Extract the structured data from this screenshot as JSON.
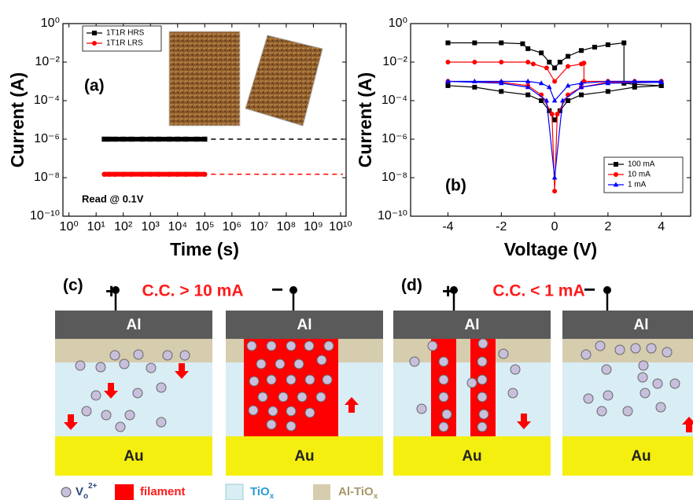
{
  "chart_data": [
    {
      "type": "scatter",
      "xlabel": "Time (s)",
      "ylabel": "Current (A)",
      "annotations": [
        "(a)",
        "Read @ 0.1V"
      ],
      "xlog": true,
      "ylog": true,
      "legend": "upper left",
      "xlim": [
        0.6,
        16000000000
      ],
      "ylim": [
        1e-10,
        1
      ],
      "xticks": [
        {
          "value": 1,
          "label": "10⁰"
        },
        {
          "value": 10,
          "label": "10¹"
        },
        {
          "value": 100,
          "label": "10²"
        },
        {
          "value": 1000,
          "label": "10³"
        },
        {
          "value": 10000,
          "label": "10⁴"
        },
        {
          "value": 100000,
          "label": "10⁵"
        },
        {
          "value": 1000000,
          "label": "10⁶"
        },
        {
          "value": 10000000,
          "label": "10⁷"
        },
        {
          "value": 100000000,
          "label": "10⁸"
        },
        {
          "value": 1000000000,
          "label": "10⁹"
        },
        {
          "value": 10000000000,
          "label": "10¹⁰"
        }
      ],
      "yticks": [
        {
          "value": 1e-10,
          "label": "10⁻¹⁰"
        },
        {
          "value": 1e-08,
          "label": "10⁻⁸"
        },
        {
          "value": 1e-06,
          "label": "10⁻⁶"
        },
        {
          "value": 0.0001,
          "label": "10⁻⁴"
        },
        {
          "value": 0.01,
          "label": "10⁻²"
        },
        {
          "value": 1,
          "label": "10⁰"
        }
      ],
      "x": [
        20,
        30,
        50,
        100,
        200,
        500,
        1000,
        2000,
        5000,
        10000,
        20000,
        50000,
        100000
      ],
      "series": [
        {
          "name": "1T1R HRS",
          "color": "#000000",
          "marker": "square",
          "values": [
            1e-06,
            1e-06,
            1e-06,
            1e-06,
            1e-06,
            1e-06,
            1e-06,
            1e-06,
            1e-06,
            1e-06,
            1e-06,
            1e-06,
            1e-06
          ]
        },
        {
          "name": "1T1R LRS",
          "color": "#ff0000",
          "marker": "circle",
          "values": [
            1.5e-08,
            1.5e-08,
            1.5e-08,
            1.5e-08,
            1.5e-08,
            1.5e-08,
            1.5e-08,
            1.5e-08,
            1.5e-08,
            1.5e-08,
            1.5e-08,
            1.5e-08,
            1.5e-08
          ]
        }
      ]
    },
    {
      "type": "line",
      "xlabel": "Voltage (V)",
      "ylabel": "Current (A)",
      "annotations": [
        "(b)"
      ],
      "xlog": false,
      "ylog": true,
      "legend": "lower right",
      "xlim": [
        -5.4,
        5.1
      ],
      "ylim": [
        1e-10,
        1
      ],
      "xticks": [
        -4,
        -2,
        0,
        2,
        4
      ],
      "yticks": [
        {
          "value": 1e-10,
          "label": "10⁻¹⁰"
        },
        {
          "value": 1e-08,
          "label": "10⁻⁸"
        },
        {
          "value": 1e-06,
          "label": "10⁻⁶"
        },
        {
          "value": 0.0001,
          "label": "10⁻⁴"
        },
        {
          "value": 0.01,
          "label": "10⁻²"
        },
        {
          "value": 1,
          "label": "10⁰"
        }
      ],
      "series": [
        {
          "name": "100 mA",
          "color": "#000000",
          "marker": "square",
          "x": [
            -4,
            -3,
            -2,
            -1.2,
            -1,
            -0.5,
            -0.2,
            0,
            0.2,
            0.5,
            1,
            1.5,
            2,
            2.6,
            2.6,
            3,
            4,
            4,
            3,
            2,
            1,
            0.5,
            0.2,
            0,
            -0.2,
            -0.5,
            -1,
            -2,
            -3,
            -4
          ],
          "values": [
            0.1,
            0.1,
            0.1,
            0.09,
            0.05,
            0.03,
            0.01,
            0.005,
            0.01,
            0.02,
            0.04,
            0.06,
            0.08,
            0.1,
            0.0008,
            0.0007,
            0.0006,
            0.0006,
            0.0005,
            0.0003,
            0.0002,
            0.0001,
            3e-05,
            1e-05,
            3e-05,
            0.0001,
            0.0002,
            0.0003,
            0.0005,
            0.0006
          ]
        },
        {
          "name": "10 mA",
          "color": "#ff0000",
          "marker": "circle",
          "x": [
            -4,
            -3,
            -2,
            -1,
            -0.8,
            -0.3,
            0,
            0.5,
            1,
            1.1,
            1.1,
            2,
            3,
            4,
            4,
            2,
            1,
            0.5,
            0.1,
            0,
            -0.1,
            -0.5,
            -1,
            -2,
            -4
          ],
          "values": [
            0.01,
            0.01,
            0.01,
            0.01,
            0.008,
            0.005,
            0.001,
            0.006,
            0.008,
            0.009,
            0.001,
            0.001,
            0.001,
            0.001,
            0.001,
            0.0009,
            0.0005,
            0.0002,
            2e-05,
            2e-09,
            2e-05,
            0.0002,
            0.0006,
            0.0009,
            0.001
          ]
        },
        {
          "name": "1 mA",
          "color": "#0000ff",
          "marker": "triangle",
          "x": [
            -4,
            -3,
            -2,
            -1,
            -0.5,
            -0.2,
            0,
            0.5,
            1,
            2,
            3,
            4,
            4,
            2,
            1,
            0.3,
            0,
            -0.3,
            -1,
            -2,
            -4
          ],
          "values": [
            0.001,
            0.001,
            0.001,
            0.001,
            0.0008,
            0.0005,
            0.0001,
            0.0006,
            0.0008,
            0.001,
            0.001,
            0.001,
            0.0009,
            0.0008,
            0.0005,
            0.0001,
            1e-08,
            0.0001,
            0.0005,
            0.0008,
            0.001
          ]
        }
      ]
    }
  ],
  "panels": [
    {
      "label": "(c)",
      "plus": "+",
      "condition": "C.C. > 10 mA",
      "minus": "−",
      "cells": [
        {
          "top": "Al",
          "bottom": "Au"
        },
        {
          "top": "Al",
          "bottom": "Au"
        }
      ]
    },
    {
      "label": "(d)",
      "plus": "+",
      "condition": "C.C. < 1 mA",
      "minus": "−",
      "cells": [
        {
          "top": "Al",
          "bottom": "Au"
        },
        {
          "top": "Al",
          "bottom": "Au"
        }
      ]
    }
  ],
  "legend": {
    "vacancy": {
      "symbol": "V",
      "sub": "o",
      "sup": "2+"
    },
    "filament": "filament",
    "tiox": {
      "text": "TiO",
      "sub": "x"
    },
    "altiox": {
      "text": "Al-TiO",
      "sub": "x"
    }
  }
}
